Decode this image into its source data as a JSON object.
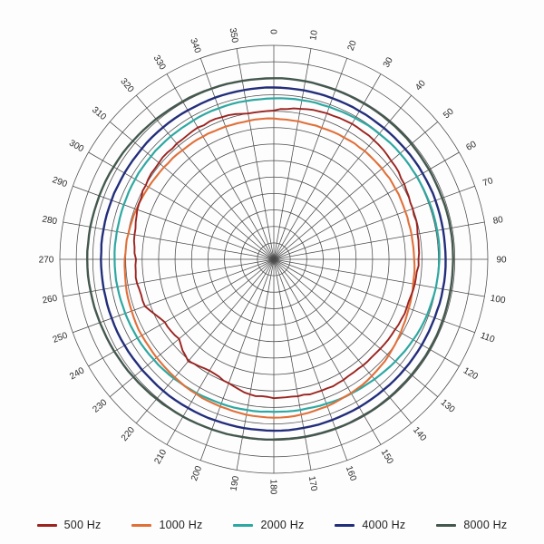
{
  "chart_data": {
    "type": "line",
    "subtype": "polar-directivity",
    "title": "",
    "orientation": "0 deg at top, angles increase clockwise",
    "angle_tick_step_deg": 10,
    "angle_tick_labels": [
      "0",
      "10",
      "20",
      "30",
      "40",
      "50",
      "60",
      "70",
      "80",
      "90",
      "100",
      "110",
      "120",
      "130",
      "140",
      "150",
      "160",
      "170",
      "180",
      "190",
      "200",
      "210",
      "220",
      "230",
      "240",
      "250",
      "260",
      "270",
      "280",
      "290",
      "300",
      "310",
      "320",
      "330",
      "340",
      "350"
    ],
    "grid": {
      "rings": 13,
      "spokes_every_deg": 10,
      "line_color": "#4a4a4a"
    },
    "radius_unit": "fraction of outer grid ring (no radial value labels shown)",
    "legend_position": "bottom",
    "series": [
      {
        "name": "500 Hz",
        "color": "#9b2420",
        "radii": [
          0.695,
          0.714,
          0.726,
          0.731,
          0.727,
          0.716,
          0.704,
          0.691,
          0.682,
          0.676,
          0.669,
          0.661,
          0.655,
          0.65,
          0.648,
          0.651,
          0.653,
          0.65,
          0.649,
          0.641,
          0.616,
          0.601,
          0.622,
          0.578,
          0.588,
          0.641,
          0.649,
          0.644,
          0.661,
          0.679,
          0.691,
          0.701,
          0.706,
          0.711,
          0.707,
          0.692
        ]
      },
      {
        "name": "1000 Hz",
        "color": "#e0703a",
        "radii": [
          0.658,
          0.655,
          0.654,
          0.657,
          0.661,
          0.66,
          0.657,
          0.654,
          0.654,
          0.656,
          0.661,
          0.671,
          0.685,
          0.7,
          0.712,
          0.722,
          0.731,
          0.737,
          0.74,
          0.738,
          0.732,
          0.726,
          0.72,
          0.715,
          0.712,
          0.707,
          0.702,
          0.697,
          0.69,
          0.683,
          0.676,
          0.67,
          0.665,
          0.662,
          0.66,
          0.658
        ]
      },
      {
        "name": "2000 Hz",
        "color": "#2ea8a2",
        "radii": [
          0.752,
          0.755,
          0.758,
          0.762,
          0.766,
          0.77,
          0.773,
          0.774,
          0.775,
          0.774,
          0.769,
          0.762,
          0.752,
          0.742,
          0.732,
          0.724,
          0.718,
          0.715,
          0.713,
          0.715,
          0.718,
          0.722,
          0.727,
          0.731,
          0.736,
          0.739,
          0.742,
          0.744,
          0.745,
          0.746,
          0.748,
          0.749,
          0.75,
          0.75,
          0.751,
          0.751
        ]
      },
      {
        "name": "4000 Hz",
        "color": "#232e7b",
        "radii": [
          0.803,
          0.802,
          0.801,
          0.8,
          0.801,
          0.802,
          0.803,
          0.804,
          0.803,
          0.803,
          0.802,
          0.8,
          0.799,
          0.798,
          0.797,
          0.798,
          0.799,
          0.8,
          0.801,
          0.801,
          0.801,
          0.802,
          0.803,
          0.804,
          0.805,
          0.806,
          0.807,
          0.808,
          0.808,
          0.807,
          0.806,
          0.805,
          0.805,
          0.804,
          0.804,
          0.803
        ]
      },
      {
        "name": "8000 Hz",
        "color": "#44584e",
        "radii": [
          0.846,
          0.845,
          0.843,
          0.841,
          0.84,
          0.839,
          0.838,
          0.837,
          0.838,
          0.838,
          0.838,
          0.839,
          0.84,
          0.84,
          0.841,
          0.841,
          0.842,
          0.842,
          0.842,
          0.843,
          0.846,
          0.849,
          0.852,
          0.856,
          0.861,
          0.865,
          0.869,
          0.872,
          0.871,
          0.868,
          0.864,
          0.86,
          0.856,
          0.852,
          0.849,
          0.847
        ]
      }
    ]
  },
  "legend": {
    "items": [
      "500 Hz",
      "1000 Hz",
      "2000 Hz",
      "4000 Hz",
      "8000 Hz"
    ]
  }
}
